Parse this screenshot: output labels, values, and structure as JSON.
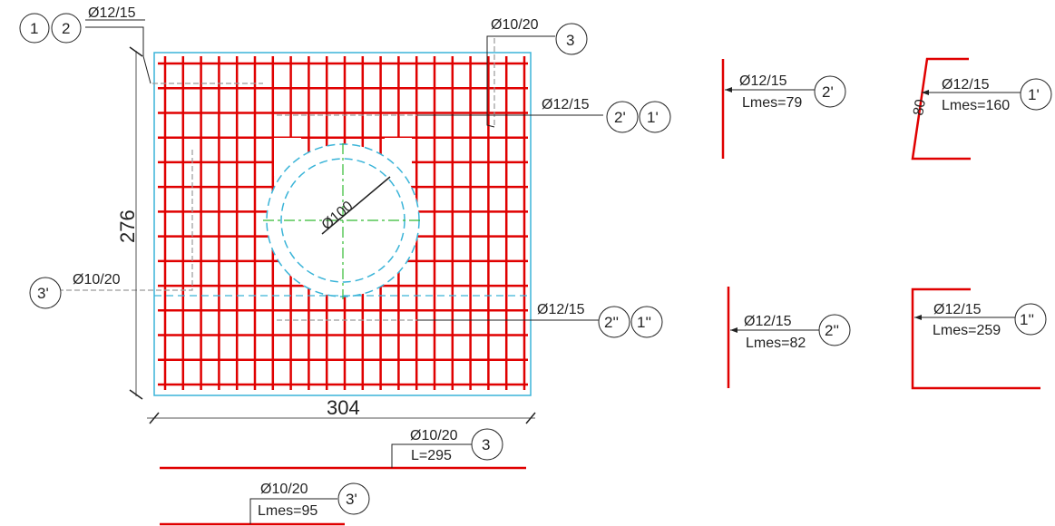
{
  "colors": {
    "rebar": "#e00000",
    "outline": "#3ab4d8",
    "hole": "#3ab4d8",
    "axis": "#33bb33",
    "dim": "#555555",
    "text": "#222222",
    "hidden": "#9a9a9a"
  },
  "plan": {
    "width_dim": "304",
    "height_dim": "276",
    "hole_dim": "Ø100",
    "marks": {
      "top_left_a": "1",
      "top_left_b": "2",
      "top_left_spec": "Ø12/15",
      "top_right": "3",
      "top_right_spec": "Ø10/20",
      "mid_right_a": "2'",
      "mid_right_b": "1'",
      "mid_right_spec": "Ø12/15",
      "left_mark": "3'",
      "left_spec": "Ø10/20",
      "low_right_a": "2''",
      "low_right_b": "1''",
      "low_right_spec": "Ø12/15"
    }
  },
  "details": {
    "bar_2p": {
      "spec": "Ø12/15",
      "length": "Lmes=79",
      "mark": "2'"
    },
    "bar_1p": {
      "spec": "Ø12/15",
      "length": "Lmes=160",
      "mark": "1'",
      "dim": "80"
    },
    "bar_2pp": {
      "spec": "Ø12/15",
      "length": "Lmes=82",
      "mark": "2''"
    },
    "bar_1pp": {
      "spec": "Ø12/15",
      "length": "Lmes=259",
      "mark": "1''"
    },
    "bar_3": {
      "spec": "Ø10/20",
      "length": "L=295",
      "mark": "3"
    },
    "bar_3p": {
      "spec": "Ø10/20",
      "length": "Lmes=95",
      "mark": "3'"
    }
  }
}
